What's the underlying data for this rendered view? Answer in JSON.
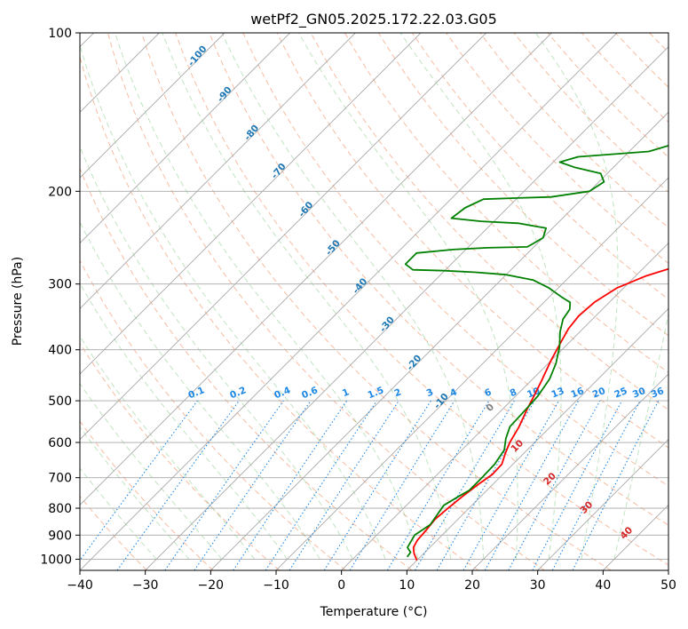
{
  "chart_data": {
    "type": "line",
    "title": "wetPf2_GN05.2025.172.22.03.G05",
    "xlabel": "Temperature (°C)",
    "ylabel": "Pressure (hPa)",
    "xlim": [
      -40,
      50
    ],
    "ylim": [
      1050,
      100
    ],
    "y_scale": "log",
    "x_ticks": [
      -40,
      -30,
      -20,
      -10,
      0,
      10,
      20,
      30,
      40,
      50
    ],
    "y_ticks": [
      1000,
      900,
      800,
      700,
      600,
      500,
      400,
      300,
      200,
      100
    ],
    "grid": true,
    "legend": "none",
    "series": [
      {
        "kind": "temperature",
        "color": "#ff0000",
        "points": [
          [
            10,
            1005
          ],
          [
            8.5,
            975
          ],
          [
            7.5,
            950
          ],
          [
            7,
            920
          ],
          [
            6.8,
            880
          ],
          [
            6.5,
            840
          ],
          [
            6.8,
            800
          ],
          [
            7.2,
            760
          ],
          [
            7.8,
            720
          ],
          [
            8.4,
            690
          ],
          [
            8.3,
            660
          ],
          [
            7.2,
            630
          ],
          [
            6.2,
            600
          ],
          [
            5.2,
            560
          ],
          [
            3.8,
            520
          ],
          [
            2.8,
            490
          ],
          [
            1.5,
            455
          ],
          [
            0,
            420
          ],
          [
            -1.2,
            390
          ],
          [
            -2.2,
            365
          ],
          [
            -2.6,
            345
          ],
          [
            -2.3,
            325
          ],
          [
            -1.0,
            305
          ],
          [
            1.5,
            290
          ],
          [
            5.5,
            275
          ],
          [
            9,
            255
          ],
          [
            11.5,
            238
          ],
          [
            14,
            222
          ],
          [
            16,
            205
          ],
          [
            18,
            190
          ],
          [
            19.5,
            178
          ],
          [
            21.5,
            168
          ],
          [
            22.5,
            158
          ],
          [
            24,
            148
          ],
          [
            25.5,
            140
          ],
          [
            27.5,
            132
          ],
          [
            30,
            124
          ],
          [
            32,
            117
          ],
          [
            34,
            110
          ],
          [
            35.5,
            105
          ],
          [
            37,
            100
          ]
        ]
      },
      {
        "kind": "dewpoint",
        "color": "#008000",
        "points": [
          [
            8,
            990
          ],
          [
            7.8,
            970
          ],
          [
            6.6,
            950
          ],
          [
            5.8,
            900
          ],
          [
            6.6,
            860
          ],
          [
            6.1,
            820
          ],
          [
            5.7,
            790
          ],
          [
            6.6,
            760
          ],
          [
            7.3,
            740
          ],
          [
            7.3,
            700
          ],
          [
            7.2,
            660
          ],
          [
            6.5,
            620
          ],
          [
            5.0,
            590
          ],
          [
            3.8,
            560
          ],
          [
            3.6,
            520
          ],
          [
            3.4,
            490
          ],
          [
            2.6,
            455
          ],
          [
            1.2,
            425
          ],
          [
            -0.8,
            395
          ],
          [
            -3.0,
            370
          ],
          [
            -4.5,
            350
          ],
          [
            -5,
            335
          ],
          [
            -6,
            325
          ],
          [
            -8,
            318
          ],
          [
            -11.5,
            305
          ],
          [
            -15,
            295
          ],
          [
            -20,
            288
          ],
          [
            -25,
            285
          ],
          [
            -30,
            283
          ],
          [
            -35,
            282
          ],
          [
            -37,
            275
          ],
          [
            -37,
            262
          ],
          [
            -32,
            258
          ],
          [
            -27,
            256
          ],
          [
            -21,
            255
          ],
          [
            -20,
            245
          ],
          [
            -21,
            235
          ],
          [
            -26,
            230
          ],
          [
            -32,
            228
          ],
          [
            -37,
            225
          ],
          [
            -36.5,
            215
          ],
          [
            -35,
            207
          ],
          [
            -30,
            206
          ],
          [
            -25,
            205
          ],
          [
            -20,
            200
          ],
          [
            -19.2,
            192
          ],
          [
            -21,
            185
          ],
          [
            -26,
            180
          ],
          [
            -29,
            176
          ],
          [
            -27,
            172
          ],
          [
            -22,
            170
          ],
          [
            -17,
            168
          ],
          [
            -13,
            160
          ],
          [
            -12.5,
            150
          ],
          [
            -11,
            140
          ],
          [
            -8.5,
            130
          ],
          [
            -6,
            122
          ],
          [
            -3.5,
            115
          ],
          [
            -1,
            108
          ],
          [
            1,
            103
          ],
          [
            2,
            100
          ]
        ]
      }
    ],
    "dry_adiabat_labels": [
      "-100",
      "-90",
      "-80",
      "-70",
      "-60",
      "-50",
      "-40",
      "-30",
      "-20",
      "-10"
    ],
    "moist_adiabat_labels": [
      "0",
      "10",
      "20",
      "30",
      "40"
    ],
    "mixing_ratio_labels": [
      "0.1",
      "0.2",
      "0.4",
      "0.6",
      "1",
      "1.5",
      "2",
      "3",
      "4",
      "6",
      "8",
      "10",
      "13",
      "16",
      "20",
      "25",
      "30",
      "36"
    ],
    "colors": {
      "temperature": "#ff0000",
      "dewpoint": "#008000",
      "dry_adiabat_label": "#1f77b4",
      "mixing_ratio": "#1e88e5",
      "moist_adiabat_label": "#d62728",
      "grid": "#a9a9a9"
    }
  }
}
